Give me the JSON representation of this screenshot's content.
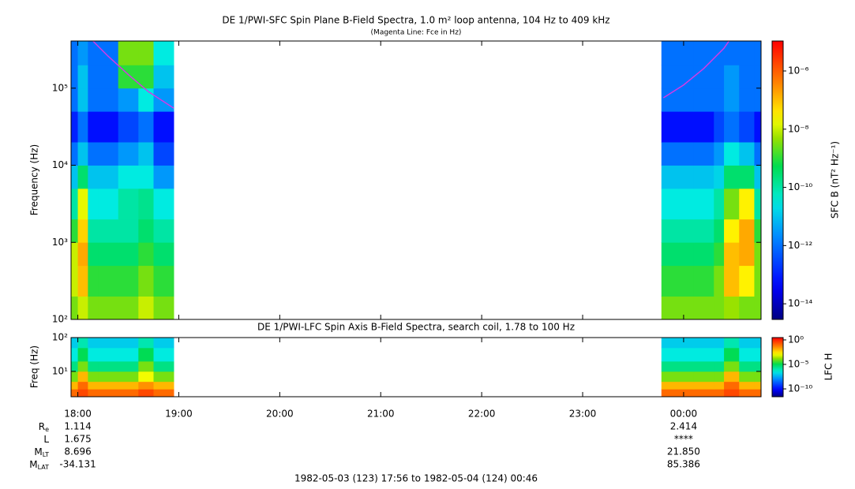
{
  "chart_data": [
    {
      "type": "heatmap",
      "title": "DE 1/PWI-SFC  Spin Plane B-Field Spectra, 1.0 m² loop antenna, 104 Hz to 409 kHz",
      "subtitle": "(Magenta Line: Fce in Hz)",
      "ylabel": "Frequency (Hz)",
      "colorbar_label": "SFC B (nT² Hz⁻¹)",
      "log_y": true,
      "log_z": true,
      "xlim": [
        17.933,
        24.767
      ],
      "ylim": [
        100,
        409000
      ],
      "yticks": [
        {
          "value": 100,
          "label": "10²"
        },
        {
          "value": 1000,
          "label": "10³"
        },
        {
          "value": 10000,
          "label": "10⁴"
        },
        {
          "value": 100000,
          "label": "10⁵"
        }
      ],
      "zlim": [
        2.9e-15,
        1.07e-05
      ],
      "zticks": [
        {
          "value": 1e-06,
          "label": "10⁻⁶"
        },
        {
          "value": 1e-08,
          "label": "10⁻⁸"
        },
        {
          "value": 1e-10,
          "label": "10⁻¹⁰"
        },
        {
          "value": 1e-12,
          "label": "10⁻¹²"
        },
        {
          "value": 1e-14,
          "label": "10⁻¹⁴"
        }
      ],
      "y_edges": [
        100,
        200,
        500,
        1000,
        2000,
        5000,
        10000,
        20000,
        50000,
        100000,
        200000,
        409000
      ],
      "segments": [
        {
          "x": [
            17.933,
            18.0,
            18.1,
            18.2,
            18.4,
            18.6,
            18.75,
            18.95
          ],
          "z": [
            [
              3e-09,
              1e-08,
              3e-09,
              3e-09,
              3e-09,
              1e-08,
              3e-09
            ],
            [
              1e-08,
              1e-07,
              1e-09,
              1e-09,
              1e-09,
              3e-09,
              1e-09
            ],
            [
              1e-08,
              1.6e-07,
              3e-10,
              3e-10,
              3e-10,
              1e-09,
              3e-10
            ],
            [
              1e-09,
              6e-08,
              1e-10,
              1e-10,
              1e-10,
              3e-10,
              1e-10
            ],
            [
              1e-10,
              1.6e-08,
              3e-11,
              3e-11,
              1e-10,
              1.6e-10,
              3e-11
            ],
            [
              1e-11,
              3e-10,
              1e-11,
              1e-11,
              3e-11,
              3e-11,
              3e-12
            ],
            [
              1e-12,
              1e-11,
              1e-12,
              1e-12,
              3e-12,
              1e-11,
              3e-13
            ],
            [
              1e-13,
              1e-12,
              6e-14,
              6e-14,
              3e-13,
              1e-12,
              6e-14
            ],
            [
              1e-12,
              1e-11,
              1e-12,
              1e-12,
              3e-12,
              3e-11,
              3e-12
            ],
            [
              1e-12,
              1e-11,
              1e-12,
              1e-12,
              1e-09,
              1e-09,
              1e-11
            ],
            [
              1e-12,
              3e-12,
              1e-12,
              1e-12,
              3e-09,
              3e-09,
              3e-11
            ]
          ]
        },
        {
          "x": [
            23.78,
            23.95,
            24.1,
            24.3,
            24.4,
            24.55,
            24.7,
            24.767
          ],
          "z": [
            [
              3e-09,
              3e-09,
              3e-09,
              3e-09,
              5e-09,
              3e-09,
              3e-09
            ],
            [
              1e-09,
              1e-09,
              1e-09,
              3e-09,
              1e-07,
              3e-08,
              3e-09
            ],
            [
              3e-10,
              3e-10,
              3e-10,
              1e-09,
              1e-07,
              1.6e-07,
              3e-09
            ],
            [
              1e-10,
              1e-10,
              1e-10,
              3e-10,
              3e-08,
              1.6e-07,
              1e-09
            ],
            [
              3e-11,
              3e-11,
              3e-11,
              1e-10,
              3e-09,
              3e-08,
              1e-10
            ],
            [
              1e-11,
              1e-11,
              1e-11,
              1.6e-11,
              3e-10,
              3e-10,
              1e-11
            ],
            [
              1e-12,
              1e-12,
              1e-12,
              3e-12,
              3e-11,
              1e-11,
              1e-12
            ],
            [
              6e-14,
              6e-14,
              6e-14,
              3e-13,
              1e-12,
              3e-13,
              6e-14
            ],
            [
              1e-12,
              1e-12,
              1e-12,
              1e-12,
              3e-12,
              1e-12,
              1e-12
            ],
            [
              1e-12,
              1e-12,
              1e-12,
              1e-12,
              3e-12,
              1e-12,
              1e-12
            ],
            [
              1e-12,
              1e-12,
              1e-12,
              1e-12,
              1e-12,
              1e-12,
              1e-12
            ]
          ]
        }
      ],
      "lines": [
        {
          "color": "#d23be6",
          "x": [
            18.15,
            18.3,
            18.5,
            18.7,
            18.95
          ],
          "values": [
            409000,
            260000,
            150000,
            90000,
            55000
          ]
        },
        {
          "color": "#d23be6",
          "x": [
            23.8,
            24.0,
            24.2,
            24.4,
            24.45
          ],
          "values": [
            75000,
            110000,
            180000,
            330000,
            409000
          ]
        }
      ]
    },
    {
      "type": "heatmap",
      "title": "DE 1/PWI-LFC  Spin Axis B-Field Spectra, search coil, 1.78 to 100 Hz",
      "ylabel": "Freq (Hz)",
      "colorbar_label": "LFC H",
      "log_y": true,
      "log_z": true,
      "xlim": [
        17.933,
        24.767
      ],
      "xticks": [
        {
          "value": 18,
          "label": "18:00"
        },
        {
          "value": 19,
          "label": "19:00"
        },
        {
          "value": 20,
          "label": "20:00"
        },
        {
          "value": 21,
          "label": "21:00"
        },
        {
          "value": 22,
          "label": "22:00"
        },
        {
          "value": 23,
          "label": "23:00"
        },
        {
          "value": 24,
          "label": "00:00"
        }
      ],
      "ylim": [
        1.78,
        100
      ],
      "yticks": [
        {
          "value": 10,
          "label": "10¹"
        },
        {
          "value": 100,
          "label": "10²"
        }
      ],
      "zlim": [
        2.5e-12,
        3
      ],
      "zticks": [
        {
          "value": 1,
          "label": "10⁰"
        },
        {
          "value": 1e-05,
          "label": "10⁻⁵"
        },
        {
          "value": 1e-10,
          "label": "10⁻¹⁰"
        }
      ],
      "y_edges": [
        1.78,
        3,
        5,
        10,
        20,
        50,
        100
      ],
      "segments": [
        {
          "x": [
            17.933,
            18.0,
            18.1,
            18.2,
            18.4,
            18.6,
            18.75,
            18.95
          ],
          "z": [
            [
              0.1,
              0.3,
              0.1,
              0.1,
              0.1,
              0.3,
              0.1
            ],
            [
              0.01,
              0.1,
              0.01,
              0.01,
              0.01,
              0.03,
              0.01
            ],
            [
              0.0001,
              0.01,
              0.0001,
              0.0001,
              0.0001,
              0.001,
              0.0001
            ],
            [
              3e-06,
              0.0001,
              3e-06,
              3e-06,
              3e-06,
              0.0001,
              3e-06
            ],
            [
              3e-07,
              1e-05,
              3e-07,
              3e-07,
              3e-07,
              1e-05,
              3e-07
            ],
            [
              1e-07,
              1e-06,
              1e-07,
              1e-07,
              1e-07,
              1e-06,
              1e-07
            ]
          ]
        },
        {
          "x": [
            23.78,
            23.95,
            24.1,
            24.3,
            24.4,
            24.55,
            24.7,
            24.767
          ],
          "z": [
            [
              0.1,
              0.1,
              0.1,
              0.1,
              0.3,
              0.1,
              0.1
            ],
            [
              0.01,
              0.01,
              0.01,
              0.01,
              0.1,
              0.01,
              0.01
            ],
            [
              0.0001,
              0.0001,
              0.0001,
              0.0001,
              0.01,
              0.0001,
              0.0001
            ],
            [
              3e-06,
              3e-06,
              3e-06,
              3e-06,
              0.0001,
              3e-06,
              3e-06
            ],
            [
              3e-07,
              3e-07,
              3e-07,
              3e-07,
              1e-05,
              3e-07,
              3e-07
            ],
            [
              1e-07,
              1e-07,
              1e-07,
              1e-07,
              1e-06,
              1e-07,
              1e-07
            ]
          ]
        }
      ]
    }
  ],
  "ephemeris": {
    "rows": [
      {
        "label": "R",
        "sub": "e",
        "values": [
          "1.114",
          "2.414"
        ]
      },
      {
        "label": "L",
        "values": [
          "1.675",
          "****"
        ]
      },
      {
        "label": "M",
        "sub": "LT",
        "values": [
          "8.696",
          "21.850"
        ]
      },
      {
        "label": "M",
        "sub": "LAT",
        "values": [
          "-34.131",
          "85.386"
        ]
      }
    ]
  },
  "footer": "1982-05-03 (123) 17:56 to 1982-05-04 (124) 00:46"
}
